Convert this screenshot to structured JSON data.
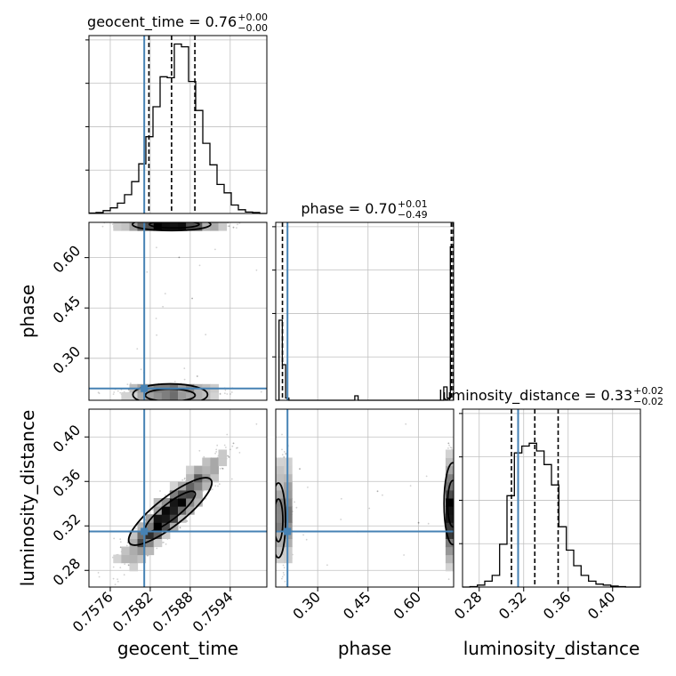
{
  "chart_data": {
    "type": "corner",
    "parameters": [
      "geocent_time",
      "phase",
      "luminosity_distance"
    ],
    "truths": {
      "geocent_time": 0.75811,
      "phase": 0.21,
      "luminosity_distance": 0.315
    },
    "truth_color": "#4682b4",
    "axis_labels": [
      "geocent_time",
      "phase",
      "luminosity_distance"
    ],
    "titles": [
      {
        "param": "geocent_time",
        "base": "geocent_time = 0.76",
        "sup": "+0.00",
        "sub": "−0.00"
      },
      {
        "param": "phase",
        "base": "phase = 0.70",
        "sup": "+0.01",
        "sub": "−0.49"
      },
      {
        "param": "luminosity_distance",
        "base": "luminosity_distance = 0.33",
        "sup": "+0.02",
        "sub": "−0.02"
      }
    ],
    "ticks": {
      "geocent_time": {
        "values": [
          0.7576,
          0.7582,
          0.7588,
          0.7594
        ],
        "labels": [
          "0.7576",
          "0.7582",
          "0.7588",
          "0.7594"
        ],
        "range": [
          0.75728,
          0.75995
        ]
      },
      "phase": {
        "values": [
          0.3,
          0.45,
          0.6
        ],
        "labels": [
          "0.30",
          "0.45",
          "0.60"
        ],
        "range": [
          0.175,
          0.705
        ]
      },
      "luminosity_distance": {
        "values": [
          0.28,
          0.32,
          0.36,
          0.4
        ],
        "labels": [
          "0.28",
          "0.32",
          "0.36",
          "0.40"
        ],
        "range": [
          0.265,
          0.425
        ]
      }
    },
    "quantiles": {
      "geocent_time": [
        0.75818,
        0.75852,
        0.75887
      ],
      "phase": [
        0.195,
        0.698,
        0.703
      ],
      "luminosity_distance": [
        0.309,
        0.33,
        0.351
      ]
    },
    "histograms": {
      "geocent_time": {
        "edges_range": [
          0.75728,
          0.75995
        ],
        "counts": [
          0.5,
          1.0,
          3.0,
          6.0,
          11.0,
          20.0,
          34.0,
          53.0,
          82.0,
          114.0,
          146.0,
          145.0,
          181.0,
          178.0,
          141.0,
          110.0,
          75.0,
          52.0,
          31.0,
          22.0,
          9.0,
          4.0,
          1.5,
          1.0,
          0.0
        ],
        "ymax": 190
      },
      "phase": {
        "edges_range": [
          0.175,
          0.705
        ],
        "counts": [
          0,
          1.8,
          0.8,
          0.05,
          0,
          0,
          0,
          0,
          0,
          0,
          0,
          0,
          0,
          0,
          0,
          0,
          0,
          0,
          0,
          0,
          0,
          0,
          0,
          0,
          0.1,
          0,
          0,
          0,
          0,
          0,
          0,
          0,
          0,
          0,
          0,
          0,
          0,
          0,
          0,
          0,
          0,
          0,
          0,
          0,
          0,
          0,
          0,
          0,
          0,
          0,
          0,
          0.3,
          0.05,
          3.45
        ],
        "ymax": 4.0
      },
      "luminosity_distance": {
        "edges_range": [
          0.265,
          0.425
        ],
        "counts": [
          0,
          0.5,
          2.0,
          6.0,
          12.0,
          44.0,
          94.0,
          138.0,
          145.0,
          148.0,
          140.0,
          126.0,
          105.0,
          62.0,
          38.0,
          22.0,
          12.0,
          6.0,
          3.0,
          2.0,
          1.0,
          0.5,
          0,
          0
        ],
        "ymax": 183
      }
    },
    "grid": true,
    "contour_levels": [
      0.39,
      0.86
    ]
  }
}
